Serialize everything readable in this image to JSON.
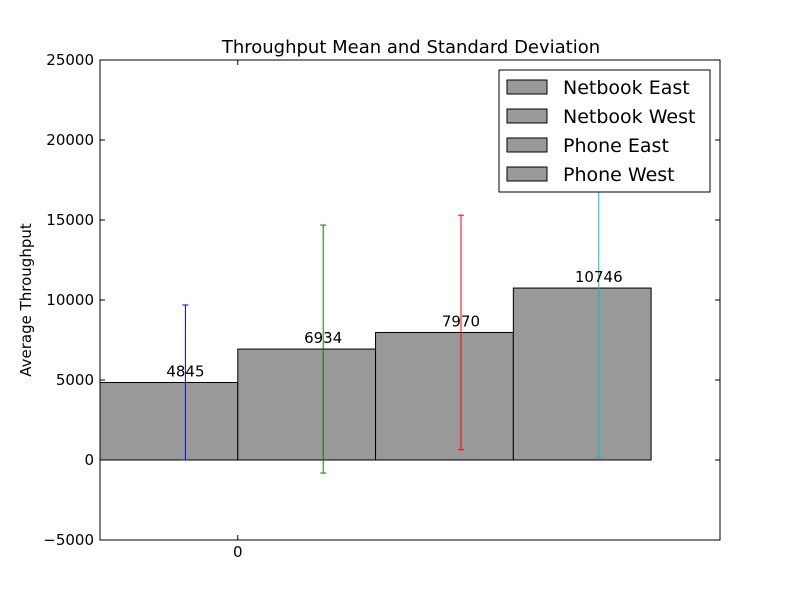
{
  "chart_data": {
    "type": "bar",
    "title": "Throughput Mean and Standard Deviation",
    "xlabel": "",
    "ylabel": "Average Throughput",
    "ylim": [
      -5000,
      25000
    ],
    "yticks": [
      -5000,
      0,
      5000,
      10000,
      15000,
      20000,
      25000
    ],
    "ytick_labels": [
      "−5000",
      "0",
      "5000",
      "10000",
      "15000",
      "20000",
      "25000"
    ],
    "xticks": [
      0
    ],
    "xtick_labels": [
      "0"
    ],
    "grid": false,
    "legend_position": "top-right",
    "series": [
      {
        "name": "Netbook East",
        "value": 4845,
        "error": 4845,
        "value_label": "4845",
        "bar_color": "#999999",
        "error_color": "#0000ff"
      },
      {
        "name": "Netbook West",
        "value": 6934,
        "error": 7750,
        "value_label": "6934",
        "bar_color": "#999999",
        "error_color": "#008000"
      },
      {
        "name": "Phone East",
        "value": 7970,
        "error": 7330,
        "value_label": "7970",
        "bar_color": "#999999",
        "error_color": "#ff0000"
      },
      {
        "name": "Phone West",
        "value": 10746,
        "error": 10600,
        "value_label": "10746",
        "bar_color": "#999999",
        "error_color": "#00bfbf"
      }
    ]
  }
}
